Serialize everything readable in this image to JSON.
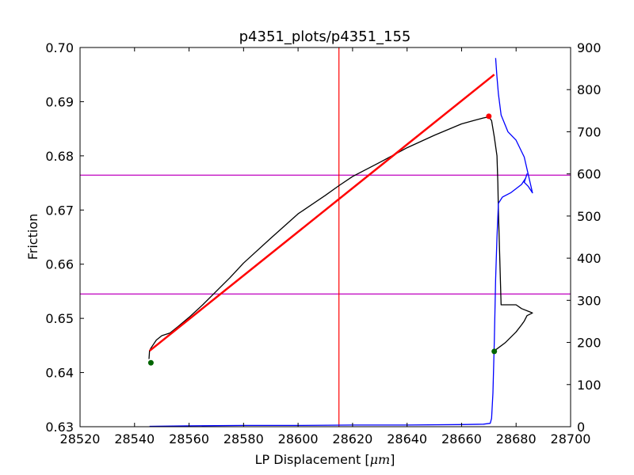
{
  "chart_data": {
    "type": "line",
    "title": "p4351_plots/p4351_155",
    "xlabel": "LP Displacement [",
    "xlabel_unit": "μm",
    "xlabel_suffix": "]",
    "ylabel": "Friction",
    "xlim": [
      28520,
      28700
    ],
    "ylim": [
      0.63,
      0.7
    ],
    "y2lim": [
      0,
      900
    ],
    "x_ticks": [
      28520,
      28540,
      28560,
      28580,
      28600,
      28620,
      28640,
      28660,
      28680,
      28700
    ],
    "y_ticks": [
      0.63,
      0.64,
      0.65,
      0.66,
      0.67,
      0.68,
      0.69,
      0.7
    ],
    "y2_ticks": [
      0,
      100,
      200,
      300,
      400,
      500,
      600,
      700,
      800,
      900
    ],
    "x_tick_labels": [
      "28520",
      "28540",
      "28560",
      "28580",
      "28600",
      "28620",
      "28640",
      "28660",
      "28680",
      "28700"
    ],
    "y_tick_labels": [
      "0.63",
      "0.64",
      "0.65",
      "0.66",
      "0.67",
      "0.68",
      "0.69",
      "0.70"
    ],
    "y2_tick_labels": [
      "0",
      "100",
      "200",
      "300",
      "400",
      "500",
      "600",
      "700",
      "800",
      "900"
    ],
    "grid": false,
    "series": [
      {
        "color": "#000000",
        "axis": "left",
        "x": [
          28545.3,
          28545.5,
          28546.0,
          28548.0,
          28550.0,
          28553.0,
          28556.0,
          28560.0,
          28565.0,
          28570.0,
          28575.0,
          28580.0,
          28590.0,
          28600.0,
          28610.0,
          28615.0,
          28620.0,
          28630.0,
          28640.0,
          28650.0,
          28660.0,
          28665.0,
          28668.0,
          28670.0,
          28671.0,
          28672.0,
          28673.0,
          28673.3,
          28673.5,
          28674.5,
          28680.0,
          28682.0,
          28685.0,
          28686.0,
          28684.0,
          28683.0,
          28682.0,
          28680.0,
          28676.0,
          28672.0
        ],
        "y": [
          0.6425,
          0.644,
          0.6445,
          0.646,
          0.6468,
          0.6473,
          0.6485,
          0.6502,
          0.6525,
          0.655,
          0.6575,
          0.6602,
          0.6648,
          0.6693,
          0.6727,
          0.6745,
          0.6762,
          0.6788,
          0.6815,
          0.6838,
          0.6859,
          0.6866,
          0.687,
          0.6872,
          0.6865,
          0.6835,
          0.68,
          0.675,
          0.67,
          0.6525,
          0.6525,
          0.6518,
          0.6512,
          0.651,
          0.6505,
          0.6495,
          0.6488,
          0.6475,
          0.6455,
          0.644
        ]
      },
      {
        "color": "#0000ff",
        "axis": "right",
        "x": [
          28545.5,
          28560.0,
          28580.0,
          28600.0,
          28620.0,
          28640.0,
          28660.0,
          28668.0,
          28670.5,
          28671.0,
          28671.5,
          28672.0,
          28672.5,
          28673.0,
          28673.5,
          28675.0,
          28678.0,
          28682.0,
          28683.5,
          28684.0,
          28683.0,
          28684.5,
          28686.0,
          28683.0,
          28680.0,
          28677.0,
          28674.5,
          28673.5,
          28673.0,
          28672.5
        ],
        "y": [
          1,
          2,
          3,
          3,
          4,
          4,
          5,
          6,
          8,
          20,
          80,
          200,
          350,
          450,
          530,
          545,
          555,
          575,
          590,
          600,
          580,
          570,
          555,
          640,
          680,
          700,
          740,
          790,
          830,
          875
        ]
      },
      {
        "color": "#ff0000",
        "axis": "left",
        "x": [
          28545.5,
          28672.0
        ],
        "y": [
          0.644,
          0.695
        ]
      }
    ],
    "points": [
      {
        "color": "#ff0000",
        "axis": "left",
        "x": 28670.0,
        "y": 0.6873
      },
      {
        "color": "#006400",
        "axis": "left",
        "x": 28546.0,
        "y": 0.6418
      },
      {
        "color": "#006400",
        "axis": "left",
        "x": 28672.0,
        "y": 0.6439
      }
    ],
    "vlines": [
      {
        "color": "#ff0000",
        "x": 28615.0
      }
    ],
    "hlines": [
      {
        "color": "#bf00bf",
        "axis": "right",
        "y": 597
      },
      {
        "color": "#bf00bf",
        "axis": "right",
        "y": 315
      }
    ]
  }
}
